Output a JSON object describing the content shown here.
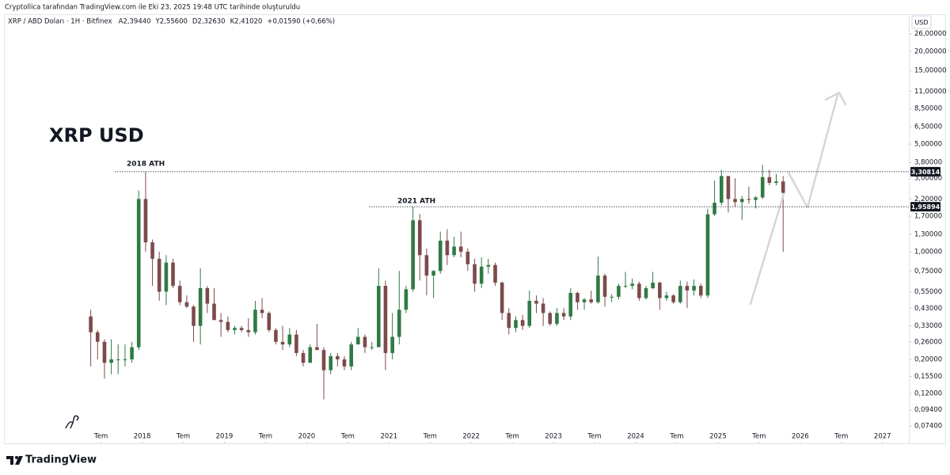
{
  "chart_data": {
    "type": "candlestick",
    "caption": "Cryptollica tarafından TradingView.com ile Eki 23, 2025 19:48 UTC tarihinde oluşturuldu",
    "title": "XRP / ABD Doları · 1H · Bitfinex",
    "ohlc_legend": [
      "A2,39440",
      "Y2,55600",
      "D2,32630",
      "K2,41020",
      "+0,01590 (+0,66%)"
    ],
    "currency": "USD",
    "brand": "TradingView",
    "annotations": [
      "XRP USD",
      "2018 ATH",
      "2021 ATH"
    ],
    "price_lines": [
      {
        "value": 3.30814,
        "label": "3,30814"
      },
      {
        "value": 1.95894,
        "label": "1,95894"
      }
    ],
    "log_scale": true,
    "grid": false,
    "up_color": "#2f7a45",
    "down_color": "#7d4a4a",
    "xlim": [
      2016.32,
      2027.32
    ],
    "ylim": [
      0.057,
      34
    ],
    "xticks": [
      {
        "value": 2017.5,
        "label": "Tem"
      },
      2018,
      {
        "value": 2018.5,
        "label": "Tem"
      },
      2019,
      {
        "value": 2019.5,
        "label": "Tem"
      },
      2020,
      {
        "value": 2020.5,
        "label": "Tem"
      },
      2021,
      {
        "value": 2021.5,
        "label": "Tem"
      },
      2022,
      {
        "value": 2022.5,
        "label": "Tem"
      },
      2023,
      {
        "value": 2023.5,
        "label": "Tem"
      },
      2024,
      {
        "value": 2024.5,
        "label": "Tem"
      },
      2025,
      {
        "value": 2025.5,
        "label": "Tem"
      },
      2026,
      {
        "value": 2026.5,
        "label": "Tem"
      },
      2027
    ],
    "yticks": [
      {
        "value": 0.074,
        "label": "0,07400"
      },
      {
        "value": 0.094,
        "label": "0,09400"
      },
      {
        "value": 0.12,
        "label": "0,12000"
      },
      {
        "value": 0.155,
        "label": "0,15500"
      },
      {
        "value": 0.2,
        "label": "0,20000"
      },
      {
        "value": 0.26,
        "label": "0,26000"
      },
      {
        "value": 0.33,
        "label": "0,33000"
      },
      {
        "value": 0.43,
        "label": "0,43000"
      },
      {
        "value": 0.55,
        "label": "0,55000"
      },
      {
        "value": 0.75,
        "label": "0,75000"
      },
      {
        "value": 1.0,
        "label": "1,00000"
      },
      {
        "value": 1.3,
        "label": "1,30000"
      },
      {
        "value": 1.7,
        "label": "1,70000"
      },
      {
        "value": 2.2,
        "label": "2,20000"
      },
      {
        "value": 3.0,
        "label": "3,00000"
      },
      {
        "value": 3.8,
        "label": "3,80000"
      },
      {
        "value": 5.0,
        "label": "5,00000"
      },
      {
        "value": 6.5,
        "label": "6,50000"
      },
      {
        "value": 8.5,
        "label": "8,50000"
      },
      {
        "value": 11.0,
        "label": "11,00000"
      },
      {
        "value": 15.0,
        "label": "15,00000"
      },
      {
        "value": 20.0,
        "label": "20,00000"
      },
      {
        "value": 26.0,
        "label": "26,00000"
      }
    ],
    "candles": {
      "x": [
        2017.375,
        2017.458,
        2017.542,
        2017.625,
        2017.708,
        2017.792,
        2017.875,
        2017.958,
        2018.042,
        2018.125,
        2018.208,
        2018.292,
        2018.375,
        2018.458,
        2018.542,
        2018.625,
        2018.708,
        2018.792,
        2018.875,
        2018.958,
        2019.042,
        2019.125,
        2019.208,
        2019.292,
        2019.375,
        2019.458,
        2019.542,
        2019.625,
        2019.708,
        2019.792,
        2019.875,
        2019.958,
        2020.042,
        2020.125,
        2020.208,
        2020.292,
        2020.375,
        2020.458,
        2020.542,
        2020.625,
        2020.708,
        2020.792,
        2020.875,
        2020.958,
        2021.042,
        2021.125,
        2021.208,
        2021.292,
        2021.375,
        2021.458,
        2021.542,
        2021.625,
        2021.708,
        2021.792,
        2021.875,
        2021.958,
        2022.042,
        2022.125,
        2022.208,
        2022.292,
        2022.375,
        2022.458,
        2022.542,
        2022.625,
        2022.708,
        2022.792,
        2022.875,
        2022.958,
        2023.042,
        2023.125,
        2023.208,
        2023.292,
        2023.375,
        2023.458,
        2023.542,
        2023.625,
        2023.708,
        2023.792,
        2023.875,
        2023.958,
        2024.042,
        2024.125,
        2024.208,
        2024.292,
        2024.375,
        2024.458,
        2024.542,
        2024.625,
        2024.708,
        2024.792,
        2024.875,
        2024.958,
        2025.042,
        2025.125,
        2025.208,
        2025.292,
        2025.375,
        2025.458,
        2025.542,
        2025.625,
        2025.708,
        2025.792
      ],
      "open": [
        0.38,
        0.3,
        0.26,
        0.19,
        0.2,
        0.2,
        0.2,
        0.24,
        2.2,
        1.15,
        0.9,
        0.55,
        0.85,
        0.6,
        0.47,
        0.44,
        0.33,
        0.58,
        0.46,
        0.36,
        0.35,
        0.31,
        0.32,
        0.31,
        0.3,
        0.42,
        0.4,
        0.31,
        0.26,
        0.25,
        0.29,
        0.22,
        0.19,
        0.24,
        0.23,
        0.17,
        0.21,
        0.2,
        0.18,
        0.25,
        0.28,
        0.24,
        0.24,
        0.6,
        0.22,
        0.28,
        0.42,
        0.57,
        1.6,
        0.95,
        0.7,
        0.75,
        1.18,
        0.95,
        1.08,
        1.0,
        0.83,
        0.62,
        0.8,
        0.82,
        0.63,
        0.4,
        0.32,
        0.36,
        0.33,
        0.48,
        0.46,
        0.4,
        0.34,
        0.4,
        0.38,
        0.54,
        0.47,
        0.49,
        0.47,
        0.7,
        0.51,
        0.51,
        0.6,
        0.6,
        0.62,
        0.5,
        0.58,
        0.63,
        0.5,
        0.52,
        0.47,
        0.6,
        0.56,
        0.6,
        0.52,
        1.75,
        2.08,
        3.1,
        2.2,
        2.1,
        2.2,
        2.17,
        2.25,
        3.05,
        2.8,
        2.86
      ],
      "high": [
        0.42,
        0.31,
        0.27,
        0.27,
        0.25,
        0.25,
        0.26,
        2.5,
        3.3,
        1.2,
        1.0,
        0.95,
        0.9,
        0.65,
        0.52,
        0.45,
        0.78,
        0.6,
        0.58,
        0.4,
        0.38,
        0.33,
        0.33,
        0.37,
        0.48,
        0.5,
        0.41,
        0.32,
        0.33,
        0.32,
        0.31,
        0.23,
        0.25,
        0.34,
        0.24,
        0.22,
        0.22,
        0.21,
        0.26,
        0.32,
        0.29,
        0.26,
        0.78,
        0.65,
        0.4,
        0.75,
        0.6,
        1.96,
        1.76,
        1.05,
        0.76,
        1.35,
        1.4,
        1.25,
        1.35,
        1.05,
        0.9,
        0.92,
        0.9,
        0.85,
        0.64,
        0.43,
        0.38,
        0.39,
        0.56,
        0.52,
        0.5,
        0.41,
        0.43,
        0.43,
        0.58,
        0.55,
        0.5,
        0.56,
        0.93,
        0.72,
        0.53,
        0.62,
        0.74,
        0.67,
        0.64,
        0.6,
        0.74,
        0.64,
        0.55,
        0.53,
        0.65,
        0.64,
        0.66,
        0.62,
        1.9,
        2.9,
        3.4,
        3.1,
        3.0,
        2.3,
        2.65,
        2.3,
        3.66,
        3.4,
        3.2,
        3.1
      ],
      "low": [
        0.18,
        0.2,
        0.15,
        0.16,
        0.16,
        0.18,
        0.19,
        0.23,
        1.0,
        0.6,
        0.48,
        0.45,
        0.58,
        0.45,
        0.43,
        0.26,
        0.25,
        0.4,
        0.36,
        0.28,
        0.3,
        0.29,
        0.3,
        0.28,
        0.29,
        0.37,
        0.3,
        0.25,
        0.23,
        0.24,
        0.21,
        0.18,
        0.19,
        0.23,
        0.11,
        0.16,
        0.18,
        0.17,
        0.17,
        0.25,
        0.22,
        0.23,
        0.24,
        0.17,
        0.2,
        0.25,
        0.4,
        0.55,
        0.65,
        0.52,
        0.5,
        0.72,
        0.82,
        0.92,
        0.92,
        0.75,
        0.55,
        0.58,
        0.72,
        0.6,
        0.36,
        0.29,
        0.3,
        0.31,
        0.32,
        0.4,
        0.33,
        0.33,
        0.33,
        0.36,
        0.36,
        0.42,
        0.42,
        0.46,
        0.46,
        0.44,
        0.47,
        0.49,
        0.58,
        0.57,
        0.48,
        0.49,
        0.57,
        0.42,
        0.48,
        0.46,
        0.46,
        0.43,
        0.52,
        0.5,
        0.5,
        1.7,
        2.0,
        1.8,
        1.95,
        1.61,
        2.05,
        1.91,
        2.2,
        2.7,
        2.7,
        1.0
      ],
      "close": [
        0.3,
        0.26,
        0.19,
        0.2,
        0.2,
        0.2,
        0.24,
        2.2,
        1.15,
        0.9,
        0.55,
        0.85,
        0.6,
        0.47,
        0.44,
        0.33,
        0.58,
        0.46,
        0.36,
        0.35,
        0.31,
        0.32,
        0.31,
        0.3,
        0.42,
        0.4,
        0.31,
        0.26,
        0.25,
        0.29,
        0.22,
        0.19,
        0.24,
        0.23,
        0.17,
        0.21,
        0.2,
        0.18,
        0.25,
        0.28,
        0.24,
        0.24,
        0.6,
        0.22,
        0.28,
        0.42,
        0.57,
        1.6,
        0.95,
        0.7,
        0.75,
        1.18,
        0.95,
        1.08,
        1.0,
        0.83,
        0.62,
        0.8,
        0.82,
        0.63,
        0.4,
        0.32,
        0.36,
        0.33,
        0.48,
        0.46,
        0.4,
        0.34,
        0.4,
        0.38,
        0.54,
        0.47,
        0.49,
        0.47,
        0.7,
        0.51,
        0.51,
        0.6,
        0.6,
        0.62,
        0.5,
        0.58,
        0.63,
        0.5,
        0.52,
        0.47,
        0.6,
        0.56,
        0.6,
        0.52,
        1.75,
        2.08,
        3.1,
        2.2,
        2.1,
        2.2,
        2.17,
        2.25,
        3.05,
        2.8,
        2.86,
        2.41
      ]
    }
  }
}
